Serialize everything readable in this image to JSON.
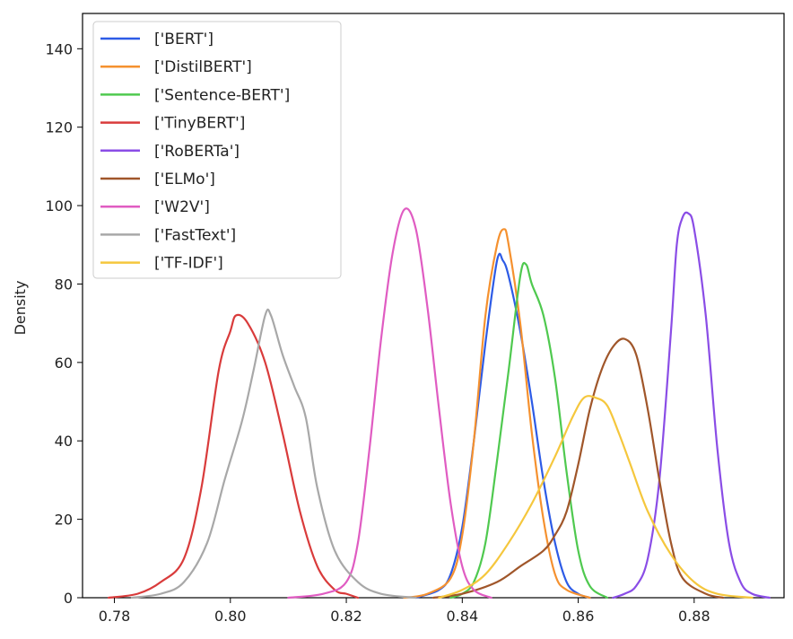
{
  "chart_data": {
    "type": "line",
    "ylabel": "Density",
    "xlabel": "",
    "xlim": [
      0.7745,
      0.8955
    ],
    "ylim": [
      0,
      149
    ],
    "xticks": [
      0.78,
      0.8,
      0.82,
      0.84,
      0.86,
      0.88
    ],
    "xtick_labels": [
      "0.78",
      "0.80",
      "0.82",
      "0.84",
      "0.86",
      "0.88"
    ],
    "yticks": [
      0,
      20,
      40,
      60,
      80,
      100,
      120,
      140
    ],
    "ytick_labels": [
      "0",
      "20",
      "40",
      "60",
      "80",
      "100",
      "120",
      "140"
    ],
    "grid": false,
    "legend_position": "top-left",
    "series": [
      {
        "name": "['BERT']",
        "color": "#2d5be6",
        "points": [
          [
            0.832,
            0
          ],
          [
            0.836,
            2
          ],
          [
            0.838,
            6
          ],
          [
            0.84,
            18
          ],
          [
            0.842,
            40
          ],
          [
            0.844,
            65
          ],
          [
            0.846,
            86
          ],
          [
            0.847,
            86
          ],
          [
            0.848,
            82
          ],
          [
            0.85,
            68
          ],
          [
            0.852,
            50
          ],
          [
            0.854,
            30
          ],
          [
            0.856,
            14
          ],
          [
            0.858,
            4
          ],
          [
            0.86,
            1
          ],
          [
            0.862,
            0
          ]
        ]
      },
      {
        "name": "['DistilBERT']",
        "color": "#f5912f",
        "points": [
          [
            0.83,
            0
          ],
          [
            0.834,
            1
          ],
          [
            0.838,
            5
          ],
          [
            0.84,
            16
          ],
          [
            0.842,
            40
          ],
          [
            0.844,
            72
          ],
          [
            0.846,
            90
          ],
          [
            0.8472,
            94
          ],
          [
            0.848,
            90
          ],
          [
            0.85,
            70
          ],
          [
            0.852,
            42
          ],
          [
            0.854,
            20
          ],
          [
            0.856,
            6
          ],
          [
            0.858,
            2
          ],
          [
            0.862,
            0
          ]
        ]
      },
      {
        "name": "['Sentence-BERT']",
        "color": "#4fc94f",
        "points": [
          [
            0.838,
            0
          ],
          [
            0.84,
            1
          ],
          [
            0.842,
            4
          ],
          [
            0.844,
            14
          ],
          [
            0.846,
            35
          ],
          [
            0.848,
            58
          ],
          [
            0.85,
            82
          ],
          [
            0.851,
            85
          ],
          [
            0.852,
            80
          ],
          [
            0.854,
            72
          ],
          [
            0.856,
            56
          ],
          [
            0.858,
            32
          ],
          [
            0.86,
            12
          ],
          [
            0.862,
            3
          ],
          [
            0.865,
            0
          ]
        ]
      },
      {
        "name": "['TinyBERT']",
        "color": "#d93b3b",
        "points": [
          [
            0.779,
            0
          ],
          [
            0.784,
            1
          ],
          [
            0.788,
            4
          ],
          [
            0.792,
            10
          ],
          [
            0.795,
            28
          ],
          [
            0.798,
            58
          ],
          [
            0.8,
            68
          ],
          [
            0.801,
            72
          ],
          [
            0.803,
            70
          ],
          [
            0.806,
            60
          ],
          [
            0.809,
            42
          ],
          [
            0.812,
            22
          ],
          [
            0.815,
            8
          ],
          [
            0.818,
            2
          ],
          [
            0.82,
            1
          ],
          [
            0.822,
            0
          ]
        ]
      },
      {
        "name": "['RoBERTa']",
        "color": "#8a4de6",
        "points": [
          [
            0.866,
            0
          ],
          [
            0.868,
            1
          ],
          [
            0.87,
            3
          ],
          [
            0.872,
            10
          ],
          [
            0.874,
            30
          ],
          [
            0.876,
            68
          ],
          [
            0.877,
            90
          ],
          [
            0.878,
            97
          ],
          [
            0.879,
            98
          ],
          [
            0.88,
            94
          ],
          [
            0.882,
            72
          ],
          [
            0.884,
            38
          ],
          [
            0.886,
            14
          ],
          [
            0.888,
            4
          ],
          [
            0.89,
            1
          ],
          [
            0.893,
            0
          ]
        ]
      },
      {
        "name": "['ELMo']",
        "color": "#a0562a",
        "points": [
          [
            0.835,
            0
          ],
          [
            0.84,
            1
          ],
          [
            0.846,
            4
          ],
          [
            0.85,
            8
          ],
          [
            0.854,
            12
          ],
          [
            0.856,
            16
          ],
          [
            0.858,
            22
          ],
          [
            0.86,
            34
          ],
          [
            0.862,
            48
          ],
          [
            0.864,
            58
          ],
          [
            0.866,
            64
          ],
          [
            0.868,
            66
          ],
          [
            0.87,
            62
          ],
          [
            0.872,
            48
          ],
          [
            0.874,
            30
          ],
          [
            0.876,
            14
          ],
          [
            0.878,
            5
          ],
          [
            0.882,
            1
          ],
          [
            0.885,
            0
          ]
        ]
      },
      {
        "name": "['W2V']",
        "color": "#e05cc2",
        "points": [
          [
            0.81,
            0
          ],
          [
            0.816,
            1
          ],
          [
            0.82,
            4
          ],
          [
            0.822,
            14
          ],
          [
            0.824,
            38
          ],
          [
            0.826,
            66
          ],
          [
            0.828,
            88
          ],
          [
            0.83,
            99
          ],
          [
            0.832,
            94
          ],
          [
            0.834,
            74
          ],
          [
            0.836,
            48
          ],
          [
            0.838,
            24
          ],
          [
            0.84,
            8
          ],
          [
            0.842,
            2
          ],
          [
            0.845,
            0
          ]
        ]
      },
      {
        "name": "['FastText']",
        "color": "#a8a8a8",
        "points": [
          [
            0.783,
            0
          ],
          [
            0.788,
            1
          ],
          [
            0.792,
            4
          ],
          [
            0.796,
            14
          ],
          [
            0.799,
            30
          ],
          [
            0.802,
            45
          ],
          [
            0.804,
            58
          ],
          [
            0.806,
            72
          ],
          [
            0.807,
            72
          ],
          [
            0.809,
            62
          ],
          [
            0.811,
            54
          ],
          [
            0.813,
            46
          ],
          [
            0.815,
            28
          ],
          [
            0.818,
            12
          ],
          [
            0.822,
            4
          ],
          [
            0.826,
            1
          ],
          [
            0.832,
            0
          ]
        ]
      },
      {
        "name": "['TF-IDF']",
        "color": "#f5c73d",
        "points": [
          [
            0.836,
            0
          ],
          [
            0.84,
            2
          ],
          [
            0.844,
            6
          ],
          [
            0.848,
            14
          ],
          [
            0.852,
            24
          ],
          [
            0.856,
            36
          ],
          [
            0.859,
            46
          ],
          [
            0.861,
            51
          ],
          [
            0.863,
            51
          ],
          [
            0.865,
            49
          ],
          [
            0.867,
            42
          ],
          [
            0.869,
            34
          ],
          [
            0.872,
            22
          ],
          [
            0.876,
            11
          ],
          [
            0.88,
            4
          ],
          [
            0.884,
            1
          ],
          [
            0.89,
            0
          ]
        ]
      }
    ]
  }
}
